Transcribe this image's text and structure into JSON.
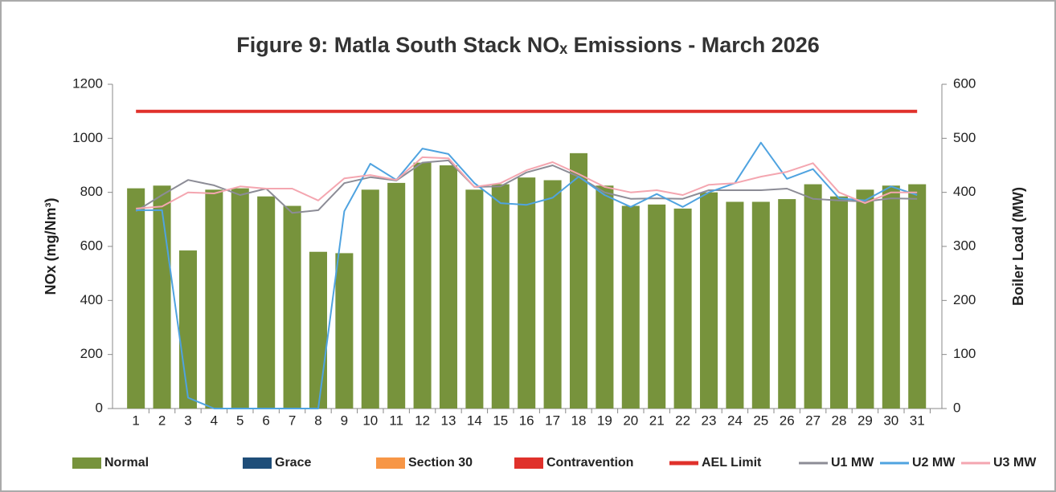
{
  "chart_data": {
    "type": "bar",
    "title": "Figure 9: Matla South Stack NOₓ Emissions - March 2026",
    "y_label": "NOx (mg/Nm³)",
    "y2_label": "Boiler Load (MW)",
    "categories": [
      "1",
      "2",
      "3",
      "4",
      "5",
      "6",
      "7",
      "8",
      "9",
      "10",
      "11",
      "12",
      "13",
      "14",
      "15",
      "16",
      "17",
      "18",
      "19",
      "20",
      "21",
      "22",
      "23",
      "24",
      "25",
      "26",
      "27",
      "28",
      "29",
      "30",
      "31"
    ],
    "ylim": [
      0,
      1200
    ],
    "yticks": [
      0,
      200,
      400,
      600,
      800,
      1000,
      1200
    ],
    "y2lim": [
      0,
      600
    ],
    "y2ticks": [
      0,
      100,
      200,
      300,
      400,
      500,
      600
    ],
    "grid": false,
    "legend": "bottom",
    "series": [
      {
        "name": "Normal",
        "kind": "bar",
        "color": "#77933c",
        "values": [
          815,
          825,
          585,
          810,
          815,
          785,
          750,
          580,
          575,
          810,
          835,
          910,
          900,
          810,
          830,
          855,
          845,
          945,
          825,
          750,
          755,
          740,
          800,
          765,
          765,
          775,
          830,
          785,
          810,
          825,
          830
        ]
      },
      {
        "name": "Grace",
        "kind": "bar",
        "color": "#1f4e79",
        "values": [
          null,
          null,
          null,
          null,
          null,
          null,
          null,
          null,
          null,
          null,
          null,
          null,
          null,
          null,
          null,
          null,
          null,
          null,
          null,
          null,
          null,
          null,
          null,
          null,
          null,
          null,
          null,
          null,
          null,
          null,
          null
        ]
      },
      {
        "name": "Section 30",
        "kind": "bar",
        "color": "#f79646",
        "values": [
          null,
          null,
          null,
          null,
          null,
          null,
          null,
          null,
          null,
          null,
          null,
          null,
          null,
          null,
          null,
          null,
          null,
          null,
          null,
          null,
          null,
          null,
          null,
          null,
          null,
          null,
          null,
          null,
          null,
          null,
          null
        ]
      },
      {
        "name": "Contravention",
        "kind": "bar",
        "color": "#e0312b",
        "values": [
          null,
          null,
          null,
          null,
          null,
          null,
          null,
          null,
          null,
          null,
          null,
          null,
          null,
          null,
          null,
          null,
          null,
          null,
          null,
          null,
          null,
          null,
          null,
          null,
          null,
          null,
          null,
          null,
          null,
          null,
          null
        ]
      },
      {
        "name": "AEL Limit",
        "kind": "line",
        "color": "#e0312b",
        "width": 4,
        "values": [
          1100,
          1100,
          1100,
          1100,
          1100,
          1100,
          1100,
          1100,
          1100,
          1100,
          1100,
          1100,
          1100,
          1100,
          1100,
          1100,
          1100,
          1100,
          1100,
          1100,
          1100,
          1100,
          1100,
          1100,
          1100,
          1100,
          1100,
          1100,
          1100,
          1100,
          1100
        ]
      },
      {
        "name": "U1 MW",
        "kind": "line",
        "axis": "y2",
        "color": "#8c8c96",
        "width": 2,
        "values": [
          365,
          395,
          423,
          413,
          395,
          407,
          362,
          367,
          417,
          428,
          422,
          455,
          459,
          410,
          411,
          437,
          450,
          429,
          400,
          388,
          389,
          388,
          404,
          404,
          404,
          407,
          388,
          385,
          383,
          389,
          388
        ]
      },
      {
        "name": "U2 MW",
        "kind": "line",
        "axis": "y2",
        "color": "#4fa3e0",
        "width": 2,
        "values": [
          367,
          367,
          20,
          0,
          0,
          0,
          0,
          0,
          365,
          453,
          423,
          481,
          471,
          417,
          380,
          377,
          390,
          429,
          395,
          373,
          397,
          373,
          400,
          417,
          492,
          425,
          443,
          389,
          385,
          411,
          395
        ]
      },
      {
        "name": "U3 MW",
        "kind": "line",
        "axis": "y2",
        "color": "#f4a6b0",
        "width": 2,
        "values": [
          370,
          374,
          400,
          398,
          411,
          407,
          407,
          385,
          426,
          432,
          423,
          465,
          463,
          410,
          417,
          441,
          456,
          434,
          410,
          400,
          404,
          395,
          414,
          417,
          429,
          438,
          454,
          400,
          380,
          400,
          400
        ]
      }
    ]
  }
}
